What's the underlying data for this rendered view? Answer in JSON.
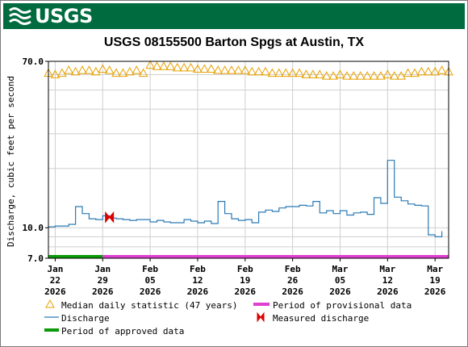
{
  "banner": {
    "logo_text": "USGS",
    "color": "#006b3f"
  },
  "chart_data": {
    "type": "line",
    "title": "USGS 08155500 Barton Spgs at Austin, TX",
    "ylabel": "Discharge, cubic feet per second",
    "xlabel": "",
    "y_scale": "log",
    "ylim": [
      7.0,
      70.0
    ],
    "y_tick_labels": [
      "70.0",
      "10.0",
      "7.0"
    ],
    "grid": true,
    "x_ticks": [
      {
        "date": "2026-01-22",
        "label": [
          "Jan",
          "22",
          "2026"
        ]
      },
      {
        "date": "2026-01-29",
        "label": [
          "Jan",
          "29",
          "2026"
        ]
      },
      {
        "date": "2026-02-05",
        "label": [
          "Feb",
          "05",
          "2026"
        ]
      },
      {
        "date": "2026-02-12",
        "label": [
          "Feb",
          "12",
          "2026"
        ]
      },
      {
        "date": "2026-02-19",
        "label": [
          "Feb",
          "19",
          "2026"
        ]
      },
      {
        "date": "2026-02-26",
        "label": [
          "Feb",
          "26",
          "2026"
        ]
      },
      {
        "date": "2026-03-05",
        "label": [
          "Mar",
          "05",
          "2026"
        ]
      },
      {
        "date": "2026-03-12",
        "label": [
          "Mar",
          "12",
          "2026"
        ]
      },
      {
        "date": "2026-03-19",
        "label": [
          "Mar",
          "19",
          "2026"
        ]
      }
    ],
    "xlim": [
      "2026-01-21",
      "2026-03-21"
    ],
    "median": {
      "name": "Median daily statistic (47 years)",
      "color": "#e8a000",
      "dates": [
        "2026-01-21",
        "2026-01-22",
        "2026-01-23",
        "2026-01-24",
        "2026-01-25",
        "2026-01-26",
        "2026-01-27",
        "2026-01-28",
        "2026-01-29",
        "2026-01-30",
        "2026-01-31",
        "2026-02-01",
        "2026-02-02",
        "2026-02-03",
        "2026-02-04",
        "2026-02-05",
        "2026-02-06",
        "2026-02-07",
        "2026-02-08",
        "2026-02-09",
        "2026-02-10",
        "2026-02-11",
        "2026-02-12",
        "2026-02-13",
        "2026-02-14",
        "2026-02-15",
        "2026-02-16",
        "2026-02-17",
        "2026-02-18",
        "2026-02-19",
        "2026-02-20",
        "2026-02-21",
        "2026-02-22",
        "2026-02-23",
        "2026-02-24",
        "2026-02-25",
        "2026-02-26",
        "2026-02-27",
        "2026-02-28",
        "2026-03-01",
        "2026-03-02",
        "2026-03-03",
        "2026-03-04",
        "2026-03-05",
        "2026-03-06",
        "2026-03-07",
        "2026-03-08",
        "2026-03-09",
        "2026-03-10",
        "2026-03-11",
        "2026-03-12",
        "2026-03-13",
        "2026-03-14",
        "2026-03-15",
        "2026-03-16",
        "2026-03-17",
        "2026-03-18",
        "2026-03-19",
        "2026-03-20",
        "2026-03-21"
      ],
      "values": [
        61,
        60,
        61,
        63,
        62,
        63,
        63,
        62,
        64,
        63,
        61,
        61,
        62,
        63,
        61,
        67,
        66,
        66,
        66,
        65,
        65,
        65,
        64,
        64,
        64,
        63,
        63,
        63,
        63,
        63,
        62,
        62,
        62,
        61,
        61,
        61,
        61,
        61,
        60,
        60,
        60,
        59,
        59,
        60,
        59,
        59,
        59,
        59,
        59,
        59,
        60,
        59,
        59,
        61,
        61,
        62,
        62,
        62,
        63,
        62
      ]
    },
    "discharge": {
      "name": "Discharge",
      "color": "#2a7ab5",
      "dates": [
        "2026-01-21",
        "2026-01-22",
        "2026-01-23",
        "2026-01-24",
        "2026-01-25",
        "2026-01-26",
        "2026-01-27",
        "2026-01-28",
        "2026-01-29",
        "2026-01-30",
        "2026-01-31",
        "2026-02-01",
        "2026-02-02",
        "2026-02-03",
        "2026-02-04",
        "2026-02-05",
        "2026-02-06",
        "2026-02-07",
        "2026-02-08",
        "2026-02-09",
        "2026-02-10",
        "2026-02-11",
        "2026-02-12",
        "2026-02-13",
        "2026-02-14",
        "2026-02-15",
        "2026-02-16",
        "2026-02-17",
        "2026-02-18",
        "2026-02-19",
        "2026-02-20",
        "2026-02-21",
        "2026-02-22",
        "2026-02-23",
        "2026-02-24",
        "2026-02-25",
        "2026-02-26",
        "2026-02-27",
        "2026-02-28",
        "2026-03-01",
        "2026-03-02",
        "2026-03-03",
        "2026-03-04",
        "2026-03-05",
        "2026-03-06",
        "2026-03-07",
        "2026-03-08",
        "2026-03-09",
        "2026-03-10",
        "2026-03-11",
        "2026-03-12",
        "2026-03-13",
        "2026-03-14",
        "2026-03-15",
        "2026-03-16",
        "2026-03-17",
        "2026-03-18",
        "2026-03-19",
        "2026-03-20"
      ],
      "values": [
        10.1,
        10.2,
        10.2,
        10.4,
        12.8,
        11.8,
        11.1,
        11.0,
        11.5,
        11.2,
        11.1,
        11.0,
        10.9,
        11.0,
        11.0,
        10.7,
        10.9,
        10.7,
        10.6,
        10.6,
        11.0,
        10.8,
        10.6,
        10.8,
        10.5,
        13.6,
        11.8,
        11.1,
        10.9,
        11.0,
        10.6,
        12.0,
        12.3,
        12.1,
        12.6,
        12.8,
        12.8,
        13.0,
        12.9,
        13.6,
        11.9,
        12.2,
        11.8,
        12.2,
        11.6,
        11.9,
        12.0,
        11.7,
        14.2,
        13.3,
        22.0,
        14.3,
        13.7,
        13.2,
        13.0,
        12.9,
        9.2,
        9.0,
        9.6
      ]
    },
    "measured": {
      "name": "Measured discharge",
      "color": "#dd0000",
      "date": "2026-01-30",
      "value": 11.3
    },
    "approved": {
      "name": "Period of approved data",
      "color": "#0a9a0a",
      "start": "2026-01-21",
      "end": "2026-01-29"
    },
    "provisional": {
      "name": "Period of provisional data",
      "color": "#e040d0",
      "start": "2026-01-29",
      "end": "2026-03-21"
    }
  }
}
